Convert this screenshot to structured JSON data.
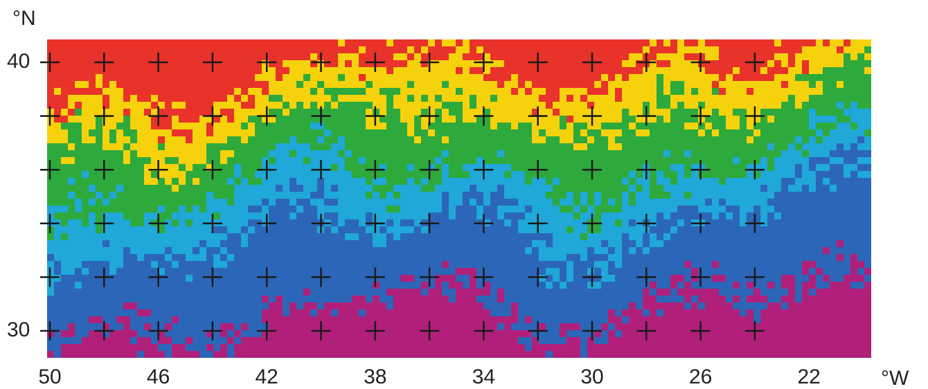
{
  "map": {
    "lat_unit": "°N",
    "lat_labels": [
      "40",
      "30"
    ],
    "lon_labels": [
      "50",
      "46",
      "42",
      "38",
      "34",
      "30",
      "26",
      "22"
    ],
    "lon_unit": "°W"
  }
}
